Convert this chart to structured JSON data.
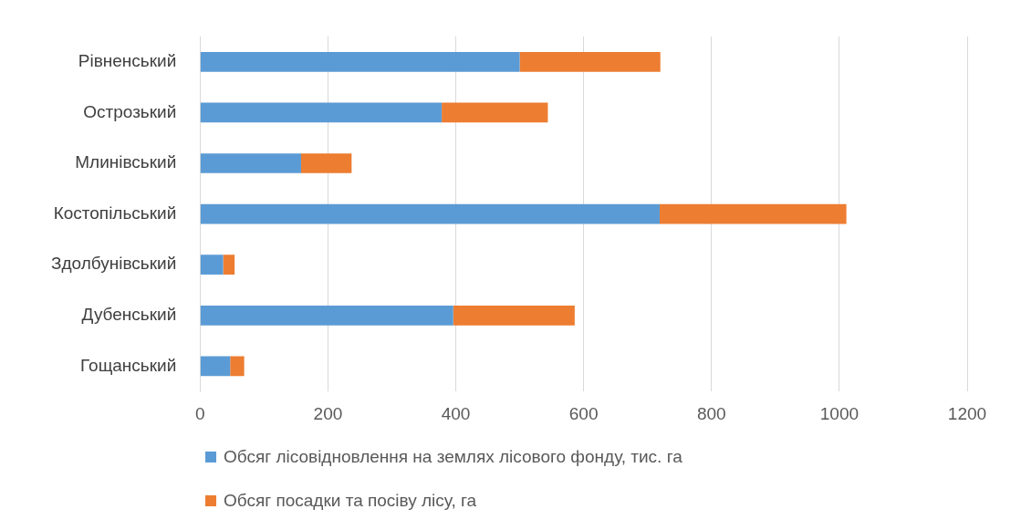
{
  "chart_data": {
    "type": "bar",
    "orientation": "horizontal",
    "stacked": true,
    "categories": [
      "Рівненський",
      "Острозький",
      "Млинівський",
      "Костопільський",
      "Здолбунівський",
      "Дубенський",
      "Гощанський"
    ],
    "series": [
      {
        "name": "Обсяг лісовідновлення на землях лісового фонду, тис. га",
        "color": "#5b9bd5",
        "values": [
          500,
          378,
          158,
          719,
          36,
          396,
          47
        ]
      },
      {
        "name": "Обсяг посадки та посіву лісу, га",
        "color": "#ed7d31",
        "values": [
          220,
          166,
          79,
          292,
          18,
          190,
          22
        ]
      }
    ],
    "xlim": [
      0,
      1200
    ],
    "xticks": [
      0,
      200,
      400,
      600,
      800,
      1000,
      1200
    ],
    "grid": "x",
    "legend": "bottom"
  }
}
